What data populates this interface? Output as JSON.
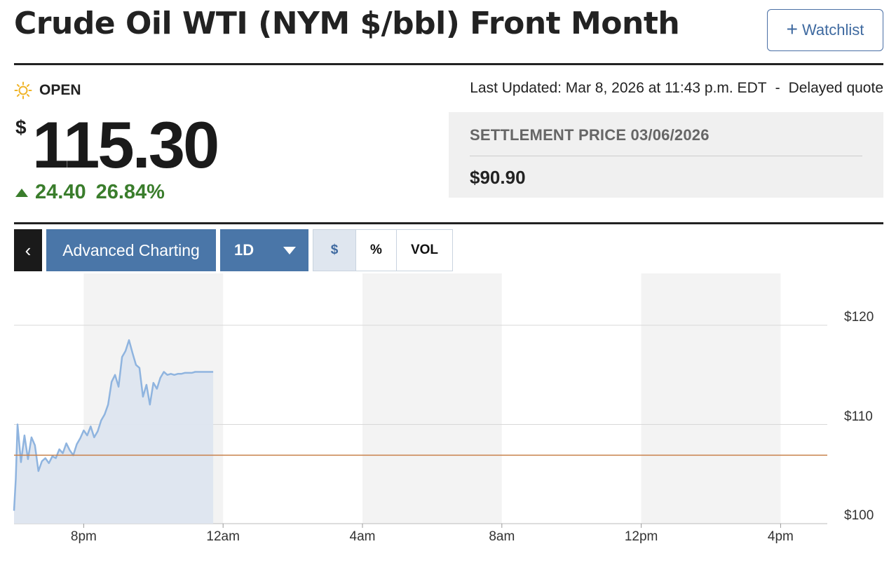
{
  "header": {
    "title": "Crude Oil WTI (NYM $/bbl) Front Month",
    "watchlist_plus": "+",
    "watchlist_label": "Watchlist"
  },
  "status": {
    "icon": "sun-icon",
    "label": "OPEN"
  },
  "updated": {
    "text": "Last Updated: Mar 8, 2026 at 11:43 p.m. EDT",
    "separator": "-",
    "quote_type": "Delayed quote"
  },
  "quote": {
    "currency_symbol": "$",
    "price": "115.30",
    "change": "24.40",
    "change_percent": "26.84%",
    "direction": "up",
    "up_color": "#3a7d2c"
  },
  "settlement": {
    "label": "SETTLEMENT PRICE 03/06/2026",
    "value": "$90.90"
  },
  "toolbar": {
    "back_label": "‹",
    "advanced_label": "Advanced Charting",
    "range_value": "1D",
    "view_options": [
      "$",
      "%",
      "VOL"
    ],
    "active_view": "$"
  },
  "chart_data": {
    "type": "area",
    "x_axis_labels": [
      "8pm",
      "12am",
      "4am",
      "8am",
      "12pm",
      "4pm"
    ],
    "y_axis_labels": [
      "$120",
      "$110",
      "$100"
    ],
    "ylim": [
      100,
      121
    ],
    "xlim_hours": [
      18,
      16
    ],
    "reference_line": {
      "value": 106.9,
      "color": "#c8804a"
    },
    "line_color": "#8fb4df",
    "fill_color": "#dde5ef",
    "shade_color": "#f3f3f3",
    "series": [
      {
        "x": [
          "6:00pm",
          "6:03pm",
          "6:06pm",
          "6:12pm",
          "6:18pm",
          "6:24pm",
          "6:30pm",
          "6:36pm",
          "6:42pm",
          "6:48pm",
          "6:54pm",
          "7:00pm",
          "7:06pm",
          "7:12pm",
          "7:18pm",
          "7:24pm",
          "7:30pm",
          "7:36pm",
          "7:42pm",
          "7:48pm",
          "7:54pm",
          "8:00pm",
          "8:06pm",
          "8:12pm",
          "8:18pm",
          "8:24pm",
          "8:30pm",
          "8:36pm",
          "8:42pm",
          "8:48pm",
          "8:54pm",
          "9:00pm",
          "9:06pm",
          "9:12pm",
          "9:18pm",
          "9:24pm",
          "9:30pm",
          "9:36pm",
          "9:42pm",
          "9:48pm",
          "9:54pm",
          "10:00pm",
          "10:06pm",
          "10:12pm",
          "10:18pm",
          "10:24pm",
          "10:30pm",
          "10:36pm",
          "10:42pm",
          "10:48pm",
          "10:54pm",
          "11:00pm",
          "11:06pm",
          "11:12pm",
          "11:18pm",
          "11:24pm",
          "11:30pm",
          "11:36pm",
          "11:43pm"
        ],
        "values": [
          101.3,
          104.5,
          110.0,
          106.2,
          108.9,
          106.5,
          108.7,
          107.9,
          105.3,
          106.3,
          106.6,
          106.1,
          106.8,
          106.6,
          107.5,
          107.1,
          108.1,
          107.4,
          106.9,
          108.0,
          108.6,
          109.4,
          108.9,
          109.8,
          108.7,
          109.3,
          110.4,
          111.0,
          112.0,
          114.3,
          115.0,
          113.8,
          116.8,
          117.4,
          118.5,
          117.2,
          116.0,
          115.7,
          112.8,
          114.0,
          112.0,
          114.2,
          113.6,
          114.7,
          115.3,
          115.0,
          115.1,
          115.0,
          115.1,
          115.1,
          115.2,
          115.2,
          115.2,
          115.3,
          115.3,
          115.3,
          115.3,
          115.3,
          115.3
        ]
      }
    ],
    "grid": true
  }
}
